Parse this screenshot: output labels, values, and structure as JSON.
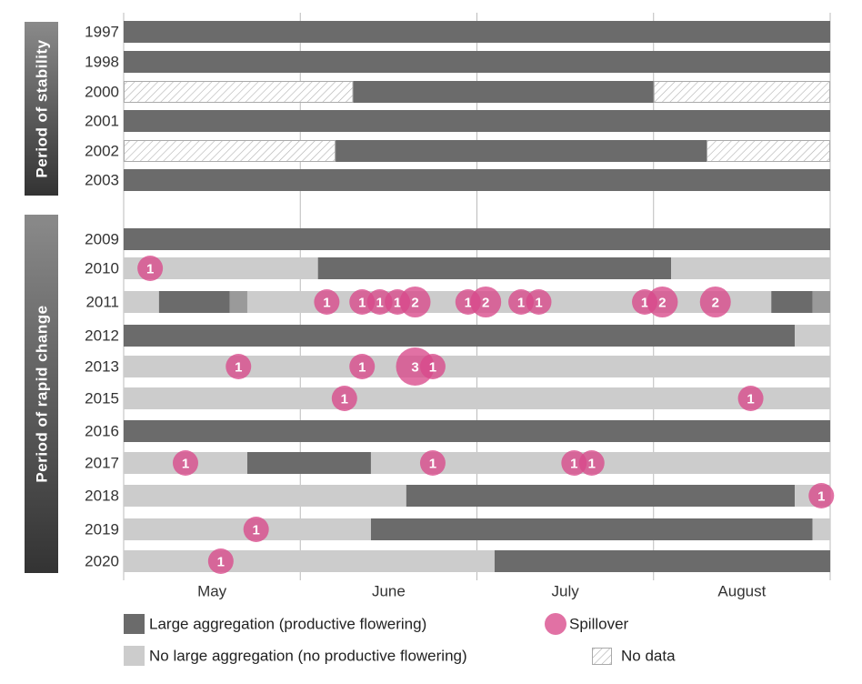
{
  "chart_data": {
    "type": "timeline",
    "months": [
      "May",
      "June",
      "July",
      "August"
    ],
    "x_domain_days": [
      0,
      120
    ],
    "groups": [
      {
        "label": "Period of stability",
        "years": [
          "1997",
          "1998",
          "2000",
          "2001",
          "2002",
          "2003"
        ]
      },
      {
        "label": "Period of rapid change",
        "years": [
          "2009",
          "2010",
          "2011",
          "2012",
          "2013",
          "2015",
          "2016",
          "2017",
          "2018",
          "2019",
          "2020"
        ]
      }
    ],
    "rows": [
      {
        "year": "1997",
        "segments": [
          {
            "start": 0,
            "end": 120,
            "state": "large"
          }
        ],
        "spillovers": []
      },
      {
        "year": "1998",
        "segments": [
          {
            "start": 0,
            "end": 120,
            "state": "large"
          }
        ],
        "spillovers": []
      },
      {
        "year": "2000",
        "segments": [
          {
            "start": 0,
            "end": 39,
            "state": "nodata"
          },
          {
            "start": 39,
            "end": 90,
            "state": "large"
          },
          {
            "start": 90,
            "end": 120,
            "state": "nodata"
          }
        ],
        "spillovers": []
      },
      {
        "year": "2001",
        "segments": [
          {
            "start": 0,
            "end": 120,
            "state": "large"
          }
        ],
        "spillovers": []
      },
      {
        "year": "2002",
        "segments": [
          {
            "start": 0,
            "end": 36,
            "state": "nodata"
          },
          {
            "start": 36,
            "end": 99,
            "state": "large"
          },
          {
            "start": 99,
            "end": 120,
            "state": "nodata"
          }
        ],
        "spillovers": []
      },
      {
        "year": "2003",
        "segments": [
          {
            "start": 0,
            "end": 120,
            "state": "large"
          }
        ],
        "spillovers": []
      },
      {
        "year": "2009",
        "segments": [
          {
            "start": 0,
            "end": 120,
            "state": "large"
          }
        ],
        "spillovers": []
      },
      {
        "year": "2010",
        "segments": [
          {
            "start": 0,
            "end": 33,
            "state": "none"
          },
          {
            "start": 33,
            "end": 93,
            "state": "large"
          },
          {
            "start": 93,
            "end": 120,
            "state": "none"
          }
        ],
        "spillovers": [
          {
            "day": 4.5,
            "count": 1
          }
        ]
      },
      {
        "year": "2011",
        "segments": [
          {
            "start": 0,
            "end": 6,
            "state": "none"
          },
          {
            "start": 6,
            "end": 18,
            "state": "large"
          },
          {
            "start": 18,
            "end": 21,
            "state": "mid"
          },
          {
            "start": 21,
            "end": 110,
            "state": "none"
          },
          {
            "start": 110,
            "end": 117,
            "state": "large"
          },
          {
            "start": 117,
            "end": 120,
            "state": "mid"
          }
        ],
        "spillovers": [
          {
            "day": 34.5,
            "count": 1
          },
          {
            "day": 40.5,
            "count": 1
          },
          {
            "day": 43.5,
            "count": 1
          },
          {
            "day": 46.5,
            "count": 1
          },
          {
            "day": 49.5,
            "count": 2
          },
          {
            "day": 58.5,
            "count": 1
          },
          {
            "day": 61.5,
            "count": 2
          },
          {
            "day": 67.5,
            "count": 1
          },
          {
            "day": 70.5,
            "count": 1
          },
          {
            "day": 88.5,
            "count": 1
          },
          {
            "day": 91.5,
            "count": 2
          },
          {
            "day": 100.5,
            "count": 2
          }
        ]
      },
      {
        "year": "2012",
        "segments": [
          {
            "start": 0,
            "end": 114,
            "state": "large"
          },
          {
            "start": 114,
            "end": 120,
            "state": "none"
          }
        ],
        "spillovers": []
      },
      {
        "year": "2013",
        "segments": [
          {
            "start": 0,
            "end": 120,
            "state": "none"
          }
        ],
        "spillovers": [
          {
            "day": 19.5,
            "count": 1
          },
          {
            "day": 40.5,
            "count": 1
          },
          {
            "day": 49.5,
            "count": 3
          },
          {
            "day": 52.5,
            "count": 1
          }
        ]
      },
      {
        "year": "2015",
        "segments": [
          {
            "start": 0,
            "end": 120,
            "state": "none"
          }
        ],
        "spillovers": [
          {
            "day": 37.5,
            "count": 1
          },
          {
            "day": 106.5,
            "count": 1
          }
        ]
      },
      {
        "year": "2016",
        "segments": [
          {
            "start": 0,
            "end": 120,
            "state": "large"
          }
        ],
        "spillovers": []
      },
      {
        "year": "2017",
        "segments": [
          {
            "start": 0,
            "end": 21,
            "state": "none"
          },
          {
            "start": 21,
            "end": 42,
            "state": "large"
          },
          {
            "start": 42,
            "end": 120,
            "state": "none"
          }
        ],
        "spillovers": [
          {
            "day": 10.5,
            "count": 1
          },
          {
            "day": 52.5,
            "count": 1
          },
          {
            "day": 76.5,
            "count": 1
          },
          {
            "day": 79.5,
            "count": 1
          }
        ]
      },
      {
        "year": "2018",
        "segments": [
          {
            "start": 0,
            "end": 48,
            "state": "none"
          },
          {
            "start": 48,
            "end": 114,
            "state": "large"
          },
          {
            "start": 114,
            "end": 120,
            "state": "none"
          }
        ],
        "spillovers": [
          {
            "day": 118.5,
            "count": 1
          }
        ]
      },
      {
        "year": "2019",
        "segments": [
          {
            "start": 0,
            "end": 42,
            "state": "none"
          },
          {
            "start": 42,
            "end": 117,
            "state": "large"
          },
          {
            "start": 117,
            "end": 120,
            "state": "none"
          }
        ],
        "spillovers": [
          {
            "day": 22.5,
            "count": 1
          }
        ]
      },
      {
        "year": "2020",
        "segments": [
          {
            "start": 0,
            "end": 63,
            "state": "none"
          },
          {
            "start": 63,
            "end": 120,
            "state": "large"
          }
        ],
        "spillovers": [
          {
            "day": 16.5,
            "count": 1
          }
        ]
      }
    ],
    "colors": {
      "large": "#6b6b6b",
      "none": "#cccccc",
      "mid": "#9a9a9a",
      "nodata_stroke": "#aaaaaa",
      "spillover": "#d9498a",
      "band": "#444444"
    },
    "legend": {
      "large": "Large aggregation (productive flowering)",
      "none": "No large aggregation (no productive flowering)",
      "spillover": "Spillover",
      "nodata": "No data"
    }
  }
}
